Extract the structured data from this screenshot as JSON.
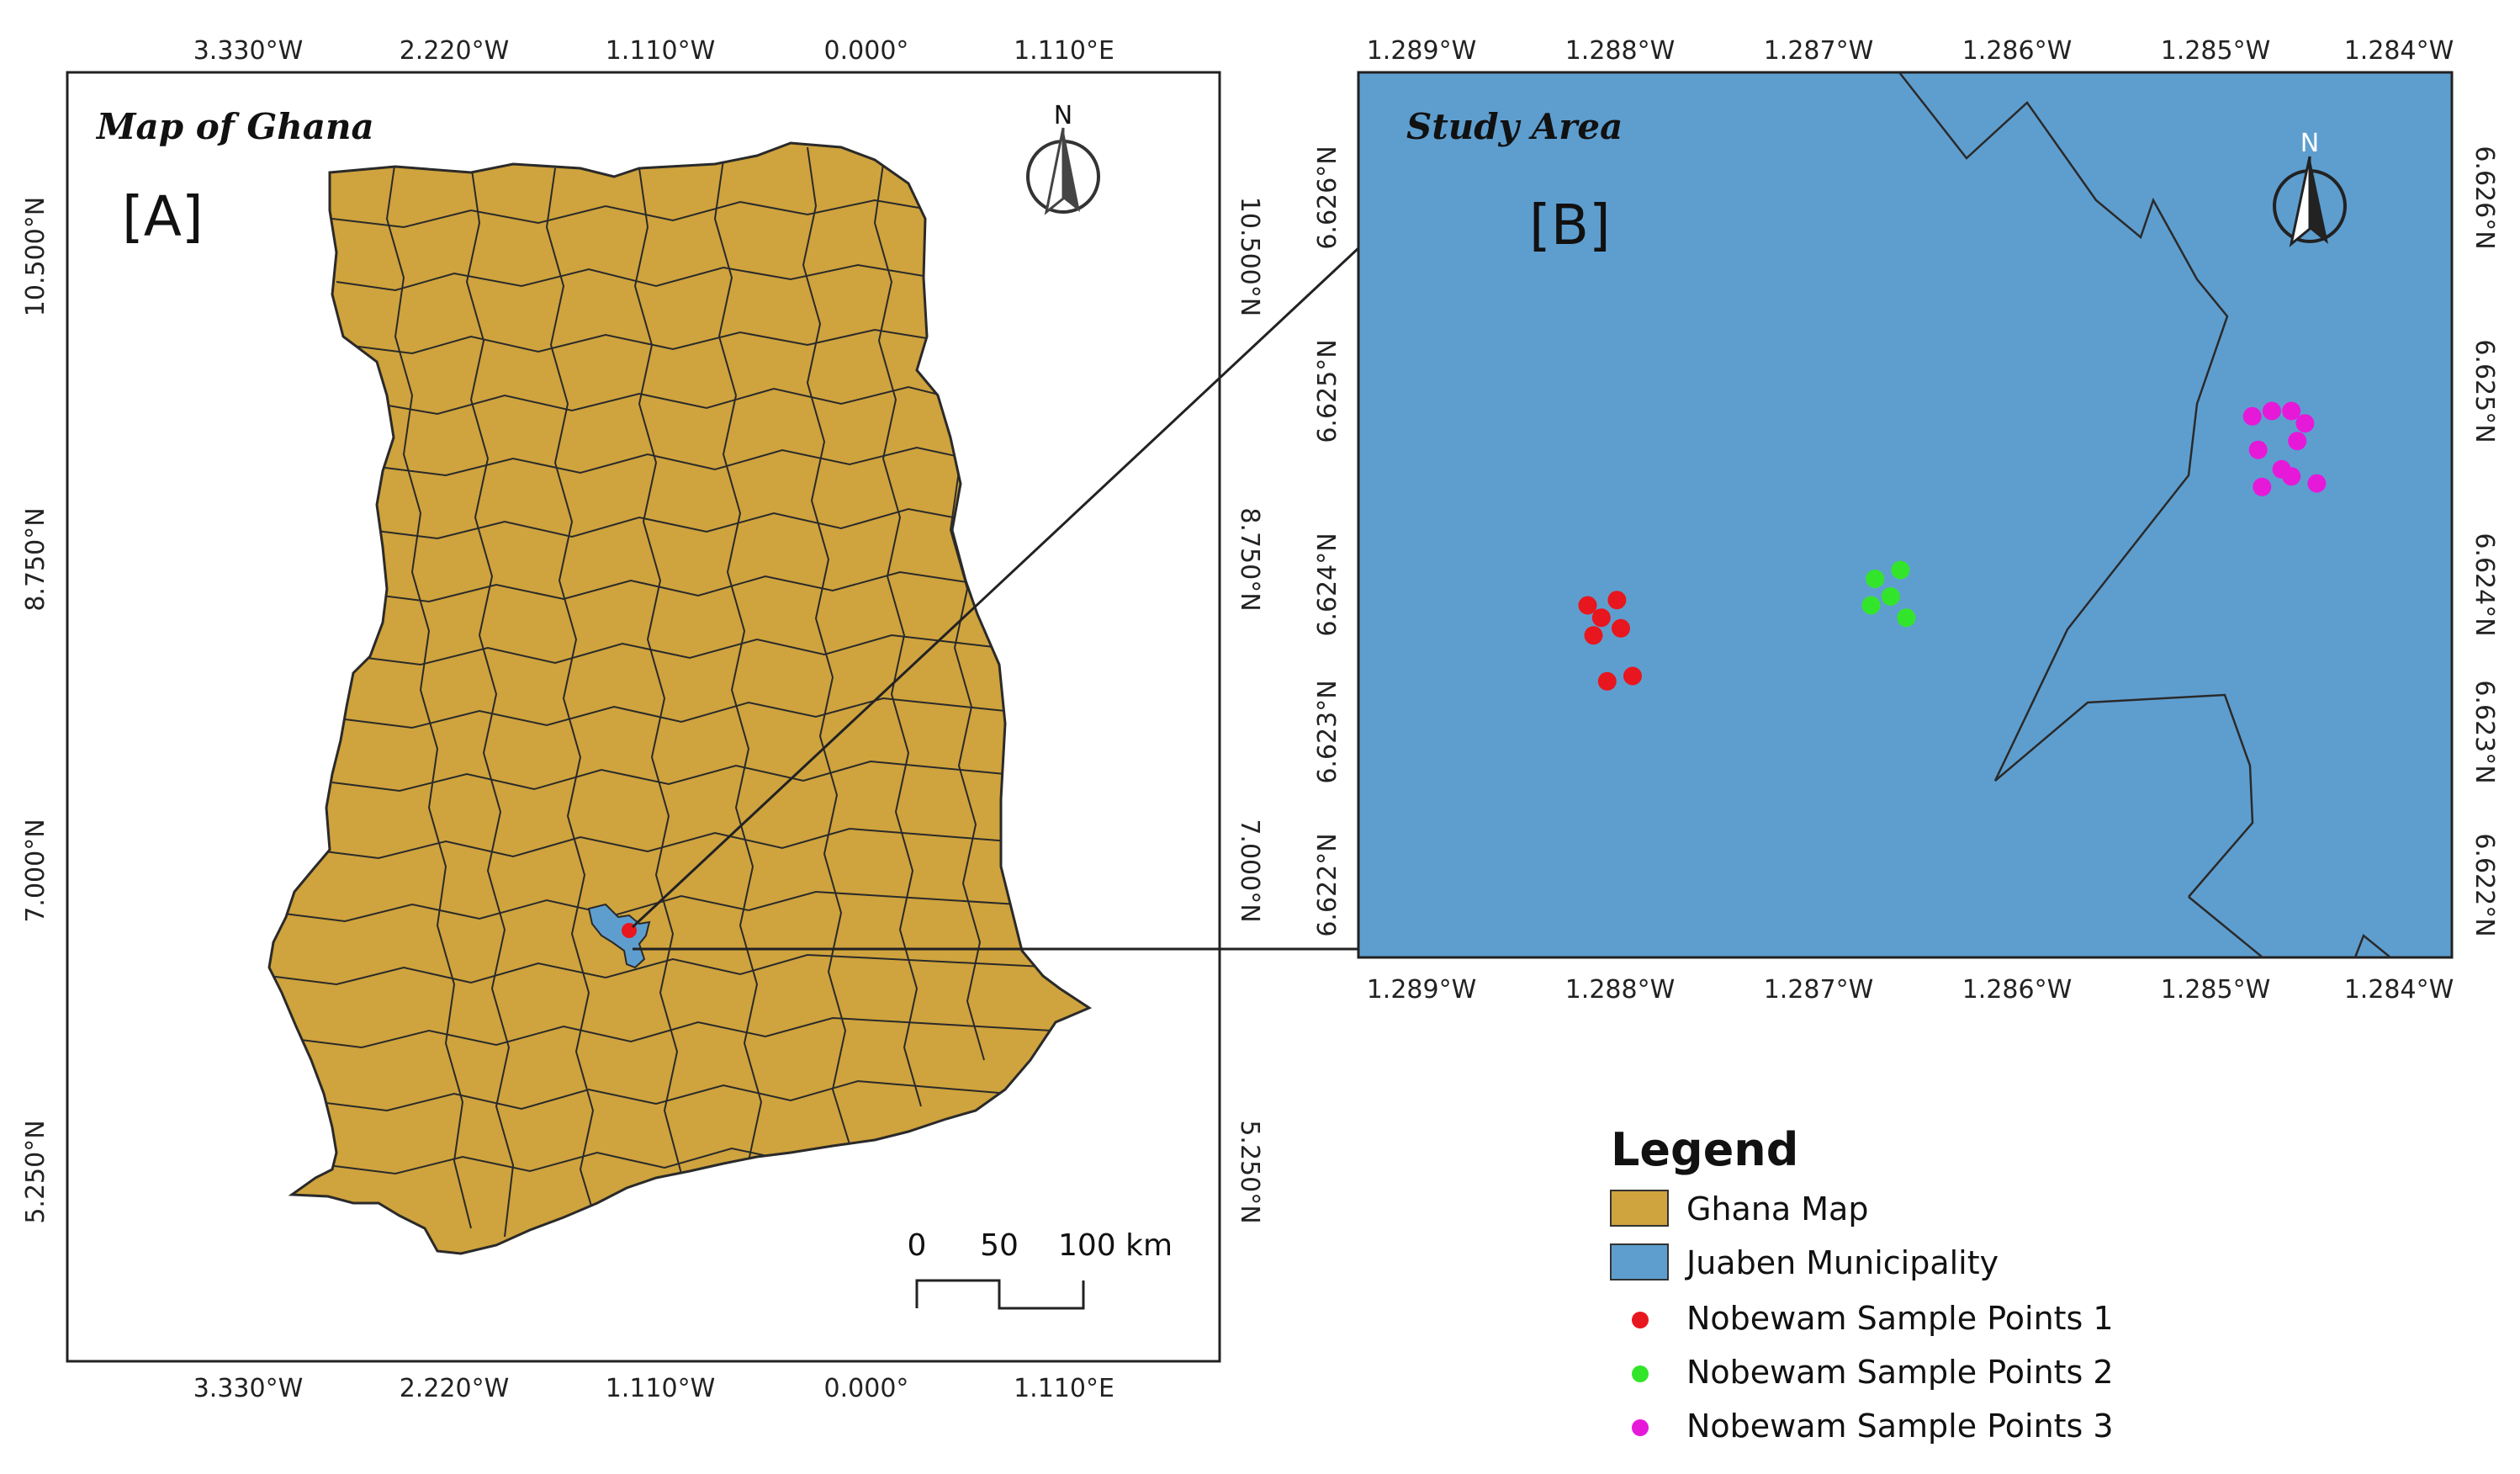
{
  "panel_a": {
    "title": "Map of Ghana",
    "tag": "[A]",
    "north_label": "N",
    "lon_ticks": [
      "3.330°W",
      "2.220°W",
      "1.110°W",
      "0.000°",
      "1.110°E"
    ],
    "lat_ticks": [
      "10.500°N",
      "8.750°N",
      "7.000°N",
      "5.250°N"
    ],
    "scale_bar": {
      "labels": [
        "0",
        "50",
        "100 km"
      ]
    }
  },
  "panel_b": {
    "title": "Study Area",
    "tag": "[B]",
    "north_label": "N",
    "lon_ticks": [
      "1.289°W",
      "1.288°W",
      "1.287°W",
      "1.286°W",
      "1.285°W",
      "1.284°W"
    ],
    "lat_ticks": [
      "6.626°N",
      "6.625°N",
      "6.624°N",
      "6.623°N",
      "6.622°N"
    ]
  },
  "legend": {
    "title": "Legend",
    "items": [
      {
        "label": "Ghana Map",
        "kind": "patch",
        "color": "#cfa33d"
      },
      {
        "label": "Juaben Municipality",
        "kind": "patch",
        "color": "#5e9ecf"
      },
      {
        "label": "Nobewam Sample Points 1",
        "kind": "dot",
        "color": "#e8161e"
      },
      {
        "label": "Nobewam Sample Points 2",
        "kind": "dot",
        "color": "#33e52a"
      },
      {
        "label": "Nobewam Sample Points 3",
        "kind": "dot",
        "color": "#e619d9"
      }
    ]
  },
  "colors": {
    "ghana_fill": "#cfa33d",
    "juaben_fill": "#5e9ecf",
    "boundary": "#2a2a2a"
  },
  "sample_points": {
    "group_1": [
      {
        "lon": -1.28815,
        "lat": 6.62355
      },
      {
        "lon": -1.28808,
        "lat": 6.62348
      },
      {
        "lon": -1.288,
        "lat": 6.62358
      },
      {
        "lon": -1.28812,
        "lat": 6.62338
      },
      {
        "lon": -1.28798,
        "lat": 6.62342
      },
      {
        "lon": -1.28805,
        "lat": 6.62312
      },
      {
        "lon": -1.28792,
        "lat": 6.62315
      }
    ],
    "group_2": [
      {
        "lon": -1.28668,
        "lat": 6.6237
      },
      {
        "lon": -1.28655,
        "lat": 6.62375
      },
      {
        "lon": -1.2866,
        "lat": 6.6236
      },
      {
        "lon": -1.2867,
        "lat": 6.62355
      },
      {
        "lon": -1.28652,
        "lat": 6.62348
      }
    ],
    "group_3": [
      {
        "lon": -1.28475,
        "lat": 6.62462
      },
      {
        "lon": -1.28465,
        "lat": 6.62465
      },
      {
        "lon": -1.28455,
        "lat": 6.62465
      },
      {
        "lon": -1.28448,
        "lat": 6.62458
      },
      {
        "lon": -1.28472,
        "lat": 6.62443
      },
      {
        "lon": -1.28452,
        "lat": 6.62448
      },
      {
        "lon": -1.2846,
        "lat": 6.62432
      },
      {
        "lon": -1.2847,
        "lat": 6.62422
      },
      {
        "lon": -1.28455,
        "lat": 6.62428
      },
      {
        "lon": -1.28442,
        "lat": 6.62424
      }
    ]
  }
}
